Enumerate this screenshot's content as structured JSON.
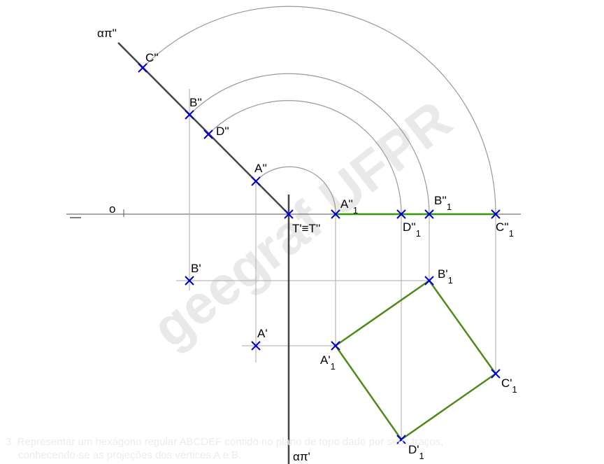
{
  "watermark": "geegraf UFPR",
  "footer": {
    "line1": "3. Representar um hexágono regular ABCDEF contido no plano de topo dado por seus traços,",
    "line2": "conhecendo-se as projeções dos vértices A e B."
  },
  "labels": {
    "trace_v": "απ''",
    "trace_h": "απ'",
    "origin": "o",
    "T": "T'≡T''",
    "A2": "A''",
    "B2": "B''",
    "C2": "C''",
    "D2": "D''",
    "A1": "A'",
    "B1": "B'",
    "A2r": "A''",
    "B2r": "B''",
    "C2r": "C''",
    "D2r": "D''",
    "A1r": "A'",
    "B1r": "B'",
    "C1r": "C'",
    "D1r": "D'",
    "sub": "1"
  },
  "colors": {
    "point": "#0000cc",
    "rotated": "#339900",
    "square": "#4d8a1a",
    "trace": "#444444",
    "construction": "#999999"
  }
}
